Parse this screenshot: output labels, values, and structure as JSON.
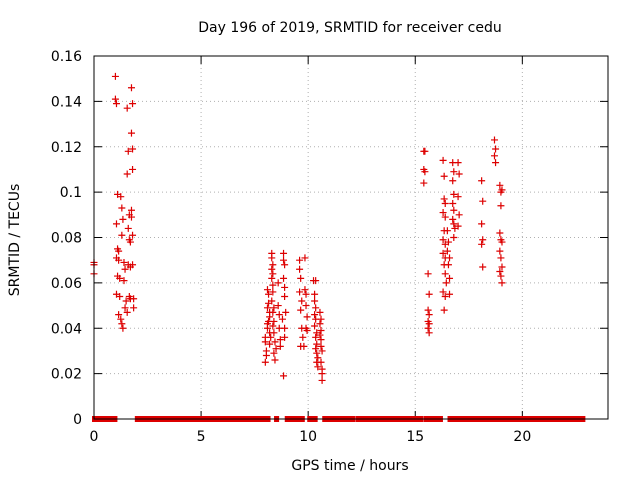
{
  "chart_data": {
    "type": "scatter",
    "title": "Day 196 of 2019, SRMTID for receiver cedu",
    "xlabel": "GPS time / hours",
    "ylabel": "SRMTID / TECUs",
    "xlim": [
      0,
      24
    ],
    "ylim": [
      0,
      0.16
    ],
    "x_ticks": [
      0,
      5,
      10,
      15,
      20
    ],
    "x_tick_labels": [
      "0",
      "5",
      "10",
      "15",
      "20"
    ],
    "y_ticks": [
      0,
      0.02,
      0.04,
      0.06,
      0.08,
      0.1,
      0.12,
      0.14,
      0.16
    ],
    "y_tick_labels": [
      "0",
      "0.02",
      "0.04",
      "0.06",
      "0.08",
      "0.1",
      "0.12",
      "0.14",
      "0.16"
    ],
    "grid": true,
    "marker": "+",
    "color": "#dd0000",
    "series": [
      {
        "name": "SRMTID",
        "points": [
          [
            0.0,
            0.069
          ],
          [
            0.0,
            0.068
          ],
          [
            0.0,
            0.064
          ],
          [
            1.0,
            0.151
          ],
          [
            1.0,
            0.141
          ],
          [
            1.05,
            0.139
          ],
          [
            1.1,
            0.099
          ],
          [
            1.05,
            0.086
          ],
          [
            1.1,
            0.075
          ],
          [
            1.15,
            0.074
          ],
          [
            1.05,
            0.071
          ],
          [
            1.15,
            0.07
          ],
          [
            1.1,
            0.063
          ],
          [
            1.2,
            0.062
          ],
          [
            1.05,
            0.055
          ],
          [
            1.2,
            0.054
          ],
          [
            1.15,
            0.046
          ],
          [
            1.25,
            0.044
          ],
          [
            1.3,
            0.042
          ],
          [
            1.35,
            0.04
          ],
          [
            1.25,
            0.098
          ],
          [
            1.3,
            0.093
          ],
          [
            1.35,
            0.088
          ],
          [
            1.3,
            0.081
          ],
          [
            1.4,
            0.069
          ],
          [
            1.45,
            0.066
          ],
          [
            1.4,
            0.061
          ],
          [
            1.5,
            0.052
          ],
          [
            1.45,
            0.049
          ],
          [
            1.55,
            0.047
          ],
          [
            1.55,
            0.137
          ],
          [
            1.6,
            0.118
          ],
          [
            1.55,
            0.108
          ],
          [
            1.65,
            0.09
          ],
          [
            1.6,
            0.084
          ],
          [
            1.65,
            0.079
          ],
          [
            1.7,
            0.078
          ],
          [
            1.6,
            0.068
          ],
          [
            1.7,
            0.067
          ],
          [
            1.65,
            0.054
          ],
          [
            1.7,
            0.053
          ],
          [
            1.75,
            0.146
          ],
          [
            1.8,
            0.139
          ],
          [
            1.75,
            0.126
          ],
          [
            1.8,
            0.119
          ],
          [
            1.8,
            0.11
          ],
          [
            1.75,
            0.092
          ],
          [
            1.75,
            0.089
          ],
          [
            1.8,
            0.081
          ],
          [
            1.8,
            0.068
          ],
          [
            1.85,
            0.053
          ],
          [
            1.85,
            0.049
          ],
          [
            8.0,
            0.036
          ],
          [
            8.0,
            0.034
          ],
          [
            8.05,
            0.03
          ],
          [
            8.05,
            0.028
          ],
          [
            8.0,
            0.025
          ],
          [
            8.1,
            0.04
          ],
          [
            8.1,
            0.042
          ],
          [
            8.1,
            0.057
          ],
          [
            8.15,
            0.055
          ],
          [
            8.15,
            0.051
          ],
          [
            8.1,
            0.049
          ],
          [
            8.2,
            0.047
          ],
          [
            8.2,
            0.045
          ],
          [
            8.15,
            0.043
          ],
          [
            8.2,
            0.038
          ],
          [
            8.25,
            0.036
          ],
          [
            8.2,
            0.033
          ],
          [
            8.3,
            0.073
          ],
          [
            8.3,
            0.071
          ],
          [
            8.35,
            0.068
          ],
          [
            8.3,
            0.066
          ],
          [
            8.35,
            0.064
          ],
          [
            8.3,
            0.062
          ],
          [
            8.35,
            0.059
          ],
          [
            8.35,
            0.056
          ],
          [
            8.3,
            0.052
          ],
          [
            8.4,
            0.049
          ],
          [
            8.35,
            0.047
          ],
          [
            8.4,
            0.043
          ],
          [
            8.35,
            0.041
          ],
          [
            8.4,
            0.038
          ],
          [
            8.45,
            0.034
          ],
          [
            8.5,
            0.031
          ],
          [
            8.4,
            0.029
          ],
          [
            8.45,
            0.026
          ],
          [
            8.6,
            0.06
          ],
          [
            8.6,
            0.05
          ],
          [
            8.65,
            0.046
          ],
          [
            8.65,
            0.04
          ],
          [
            8.7,
            0.035
          ],
          [
            8.7,
            0.032
          ],
          [
            8.85,
            0.073
          ],
          [
            8.85,
            0.07
          ],
          [
            8.9,
            0.068
          ],
          [
            8.85,
            0.062
          ],
          [
            8.9,
            0.058
          ],
          [
            8.9,
            0.054
          ],
          [
            8.95,
            0.047
          ],
          [
            8.8,
            0.044
          ],
          [
            8.9,
            0.04
          ],
          [
            8.9,
            0.036
          ],
          [
            8.85,
            0.019
          ],
          [
            9.6,
            0.07
          ],
          [
            9.6,
            0.066
          ],
          [
            9.65,
            0.062
          ],
          [
            9.6,
            0.056
          ],
          [
            9.7,
            0.052
          ],
          [
            9.65,
            0.048
          ],
          [
            9.7,
            0.04
          ],
          [
            9.75,
            0.036
          ],
          [
            9.8,
            0.032
          ],
          [
            9.65,
            0.032
          ],
          [
            9.85,
            0.071
          ],
          [
            9.85,
            0.057
          ],
          [
            9.9,
            0.055
          ],
          [
            9.9,
            0.05
          ],
          [
            9.95,
            0.045
          ],
          [
            9.9,
            0.04
          ],
          [
            9.95,
            0.039
          ],
          [
            10.25,
            0.061
          ],
          [
            10.35,
            0.061
          ],
          [
            10.3,
            0.055
          ],
          [
            10.3,
            0.052
          ],
          [
            10.35,
            0.049
          ],
          [
            10.3,
            0.046
          ],
          [
            10.35,
            0.044
          ],
          [
            10.3,
            0.041
          ],
          [
            10.4,
            0.038
          ],
          [
            10.35,
            0.036
          ],
          [
            10.4,
            0.033
          ],
          [
            10.35,
            0.031
          ],
          [
            10.4,
            0.029
          ],
          [
            10.45,
            0.027
          ],
          [
            10.4,
            0.025
          ],
          [
            10.45,
            0.023
          ],
          [
            10.55,
            0.047
          ],
          [
            10.6,
            0.044
          ],
          [
            10.55,
            0.042
          ],
          [
            10.6,
            0.039
          ],
          [
            10.55,
            0.037
          ],
          [
            10.6,
            0.035
          ],
          [
            10.6,
            0.032
          ],
          [
            10.65,
            0.03
          ],
          [
            10.6,
            0.025
          ],
          [
            10.65,
            0.022
          ],
          [
            10.65,
            0.02
          ],
          [
            10.65,
            0.017
          ],
          [
            15.4,
            0.118
          ],
          [
            15.45,
            0.118
          ],
          [
            15.4,
            0.11
          ],
          [
            15.45,
            0.109
          ],
          [
            15.4,
            0.104
          ],
          [
            15.6,
            0.064
          ],
          [
            15.65,
            0.055
          ],
          [
            15.6,
            0.048
          ],
          [
            15.65,
            0.046
          ],
          [
            15.6,
            0.043
          ],
          [
            15.65,
            0.042
          ],
          [
            15.6,
            0.04
          ],
          [
            15.65,
            0.038
          ],
          [
            16.3,
            0.114
          ],
          [
            16.35,
            0.107
          ],
          [
            16.35,
            0.097
          ],
          [
            16.4,
            0.095
          ],
          [
            16.3,
            0.091
          ],
          [
            16.4,
            0.089
          ],
          [
            16.35,
            0.083
          ],
          [
            16.3,
            0.079
          ],
          [
            16.4,
            0.077
          ],
          [
            16.3,
            0.073
          ],
          [
            16.4,
            0.071
          ],
          [
            16.35,
            0.068
          ],
          [
            16.4,
            0.064
          ],
          [
            16.45,
            0.06
          ],
          [
            16.3,
            0.056
          ],
          [
            16.4,
            0.054
          ],
          [
            16.35,
            0.048
          ],
          [
            16.5,
            0.083
          ],
          [
            16.55,
            0.078
          ],
          [
            16.5,
            0.074
          ],
          [
            16.6,
            0.071
          ],
          [
            16.55,
            0.068
          ],
          [
            16.6,
            0.062
          ],
          [
            16.6,
            0.055
          ],
          [
            16.75,
            0.113
          ],
          [
            16.8,
            0.109
          ],
          [
            16.75,
            0.105
          ],
          [
            16.8,
            0.099
          ],
          [
            16.75,
            0.095
          ],
          [
            16.8,
            0.092
          ],
          [
            16.75,
            0.088
          ],
          [
            16.8,
            0.086
          ],
          [
            16.85,
            0.084
          ],
          [
            16.8,
            0.08
          ],
          [
            17.0,
            0.113
          ],
          [
            17.05,
            0.108
          ],
          [
            17.0,
            0.098
          ],
          [
            17.05,
            0.09
          ],
          [
            17.0,
            0.085
          ],
          [
            18.1,
            0.105
          ],
          [
            18.15,
            0.096
          ],
          [
            18.1,
            0.086
          ],
          [
            18.15,
            0.079
          ],
          [
            18.1,
            0.077
          ],
          [
            18.15,
            0.067
          ],
          [
            18.7,
            0.123
          ],
          [
            18.75,
            0.119
          ],
          [
            18.7,
            0.116
          ],
          [
            18.75,
            0.113
          ],
          [
            18.95,
            0.103
          ],
          [
            19.0,
            0.1
          ],
          [
            19.05,
            0.101
          ],
          [
            19.0,
            0.094
          ],
          [
            18.95,
            0.082
          ],
          [
            19.0,
            0.079
          ],
          [
            19.05,
            0.078
          ],
          [
            18.95,
            0.074
          ],
          [
            19.0,
            0.071
          ],
          [
            19.05,
            0.067
          ],
          [
            18.95,
            0.065
          ],
          [
            19.0,
            0.063
          ],
          [
            19.05,
            0.06
          ]
        ]
      }
    ],
    "zero_segments": [
      [
        0.0,
        1.0
      ],
      [
        2.0,
        8.15
      ],
      [
        8.5,
        8.55
      ],
      [
        9.0,
        9.75
      ],
      [
        10.05,
        10.35
      ],
      [
        10.75,
        12.1
      ],
      [
        12.3,
        15.3
      ],
      [
        15.5,
        16.2
      ],
      [
        16.6,
        16.75
      ],
      [
        16.9,
        22.85
      ]
    ]
  }
}
